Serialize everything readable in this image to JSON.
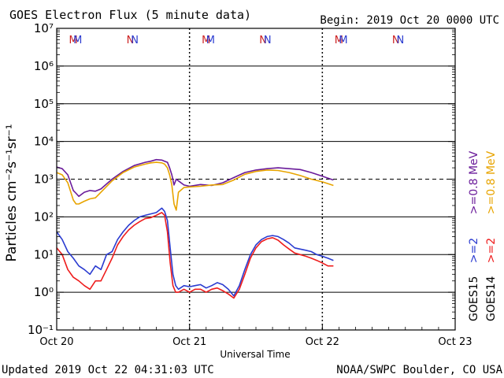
{
  "chart_data": {
    "type": "line",
    "title": "GOES Electron Flux (5 minute data)",
    "begin_label": "Begin: 2019 Oct 20 0000 UTC",
    "xlabel": "Universal Time",
    "ylabel": "Particles cm⁻²s⁻¹sr⁻¹",
    "y_scale": "log",
    "ylim_exponents": [
      -1,
      7
    ],
    "ytick_labels": [
      "10⁻¹",
      "10⁰",
      "10¹",
      "10²",
      "10³",
      "10⁴",
      "10⁵",
      "10⁶",
      "10⁷"
    ],
    "xlim_hours": [
      0,
      72
    ],
    "xtick_labels": [
      "Oct 20",
      "Oct 21",
      "Oct 22",
      "Oct 23"
    ],
    "threshold_level": 1000,
    "top_markers": [
      {
        "label": "M",
        "hour": 3.0,
        "color": "#cc2020"
      },
      {
        "label": "M",
        "hour": 3.8,
        "color": "#2a3bd0"
      },
      {
        "label": "N",
        "hour": 13.3,
        "color": "#cc2020"
      },
      {
        "label": "N",
        "hour": 14.1,
        "color": "#2a3bd0"
      },
      {
        "label": "M",
        "hour": 27.0,
        "color": "#cc2020"
      },
      {
        "label": "M",
        "hour": 27.8,
        "color": "#2a3bd0"
      },
      {
        "label": "N",
        "hour": 37.3,
        "color": "#cc2020"
      },
      {
        "label": "N",
        "hour": 38.1,
        "color": "#2a3bd0"
      },
      {
        "label": "M",
        "hour": 51.0,
        "color": "#cc2020"
      },
      {
        "label": "M",
        "hour": 51.8,
        "color": "#2a3bd0"
      },
      {
        "label": "N",
        "hour": 61.3,
        "color": "#cc2020"
      },
      {
        "label": "N",
        "hour": 62.1,
        "color": "#2a3bd0"
      }
    ],
    "legend": [
      {
        "sat": "GOES15",
        "series": [
          {
            "label": ">=2",
            "color": "#2a3bd0"
          },
          {
            "label": ">=0.8 MeV",
            "color": "#6a1b9a"
          }
        ]
      },
      {
        "sat": "GOES14",
        "series": [
          {
            "label": ">=2",
            "color": "#ee1c1c"
          },
          {
            "label": ">=0.8 MeV",
            "color": "#e8a400"
          }
        ]
      }
    ],
    "series": [
      {
        "name": "GOES15 >=0.8 MeV",
        "color": "#6a1b9a",
        "x": [
          0,
          1,
          2,
          3,
          3.5,
          4,
          5,
          6,
          7,
          8,
          10,
          12,
          14,
          16,
          17,
          18,
          19,
          19.5,
          20,
          20.4,
          20.8,
          21.2,
          21.6,
          22,
          23,
          24,
          26,
          28,
          30,
          32,
          34,
          36,
          38,
          40,
          42,
          44,
          46,
          48,
          50
        ],
        "y": [
          2100,
          1900,
          1300,
          500,
          420,
          350,
          450,
          500,
          480,
          550,
          1000,
          1600,
          2300,
          2800,
          3000,
          3300,
          3200,
          3000,
          2800,
          2000,
          1300,
          700,
          1000,
          900,
          700,
          650,
          720,
          680,
          800,
          1100,
          1500,
          1750,
          1900,
          2000,
          1900,
          1800,
          1500,
          1200,
          950
        ]
      },
      {
        "name": "GOES14 >=0.8 MeV",
        "color": "#e8a400",
        "x": [
          0,
          1,
          2,
          3,
          3.5,
          4,
          5,
          6,
          7,
          8,
          10,
          12,
          14,
          16,
          17,
          18,
          19,
          19.5,
          20,
          20.4,
          20.8,
          21.2,
          21.6,
          22,
          23,
          24,
          26,
          28,
          30,
          32,
          34,
          36,
          38,
          40,
          42,
          44,
          46,
          48,
          50
        ],
        "y": [
          1500,
          1300,
          800,
          280,
          220,
          220,
          260,
          300,
          320,
          450,
          900,
          1500,
          2100,
          2500,
          2700,
          2800,
          2700,
          2500,
          2000,
          1300,
          700,
          220,
          150,
          450,
          600,
          620,
          650,
          700,
          720,
          950,
          1350,
          1600,
          1750,
          1700,
          1500,
          1250,
          1000,
          850,
          680
        ]
      },
      {
        "name": "GOES15 >=2 MeV",
        "color": "#2a3bd0",
        "x": [
          0,
          1,
          2,
          3,
          4,
          5,
          6,
          7,
          8,
          9,
          10,
          11,
          12,
          13,
          14,
          15,
          16,
          17,
          18,
          19,
          19.5,
          20,
          20.5,
          21,
          21.5,
          22,
          23,
          24,
          25,
          26,
          27,
          28,
          29,
          30,
          31,
          32,
          33,
          34,
          35,
          36,
          37,
          38,
          39,
          40,
          41,
          42,
          43,
          44,
          45,
          46,
          47,
          48,
          49,
          50
        ],
        "y": [
          40,
          25,
          12,
          8,
          5,
          4,
          3,
          5,
          4,
          10,
          12,
          25,
          40,
          60,
          80,
          100,
          110,
          120,
          130,
          170,
          140,
          80,
          15,
          3,
          1.5,
          1.2,
          1.5,
          1.4,
          1.5,
          1.6,
          1.3,
          1.5,
          1.8,
          1.6,
          1.2,
          0.8,
          1.5,
          4,
          10,
          18,
          25,
          30,
          32,
          30,
          25,
          20,
          15,
          14,
          13,
          12,
          10,
          9,
          8,
          7
        ]
      },
      {
        "name": "GOES14 >=2 MeV",
        "color": "#ee1c1c",
        "x": [
          0,
          1,
          2,
          3,
          4,
          5,
          6,
          7,
          8,
          9,
          10,
          11,
          12,
          13,
          14,
          15,
          16,
          17,
          18,
          19,
          19.5,
          20,
          20.5,
          21,
          21.5,
          22,
          23,
          24,
          25,
          26,
          27,
          28,
          29,
          30,
          31,
          32,
          33,
          34,
          35,
          36,
          37,
          38,
          39,
          40,
          41,
          42,
          43,
          44,
          45,
          46,
          47,
          48,
          49,
          50
        ],
        "y": [
          15,
          10,
          4,
          2.5,
          2,
          1.5,
          1.2,
          2,
          2,
          4,
          8,
          18,
          30,
          45,
          60,
          75,
          90,
          95,
          110,
          130,
          110,
          40,
          6,
          1.5,
          1,
          1,
          1.2,
          1,
          1.2,
          1.2,
          1,
          1.2,
          1.3,
          1.1,
          0.9,
          0.7,
          1.2,
          3,
          8,
          15,
          22,
          26,
          28,
          24,
          18,
          14,
          11,
          10,
          9,
          8,
          7,
          6,
          5,
          5
        ]
      }
    ]
  },
  "footer": {
    "updated": "Updated 2019 Oct 22 04:31:03 UTC",
    "credit": "NOAA/SWPC Boulder, CO USA"
  }
}
